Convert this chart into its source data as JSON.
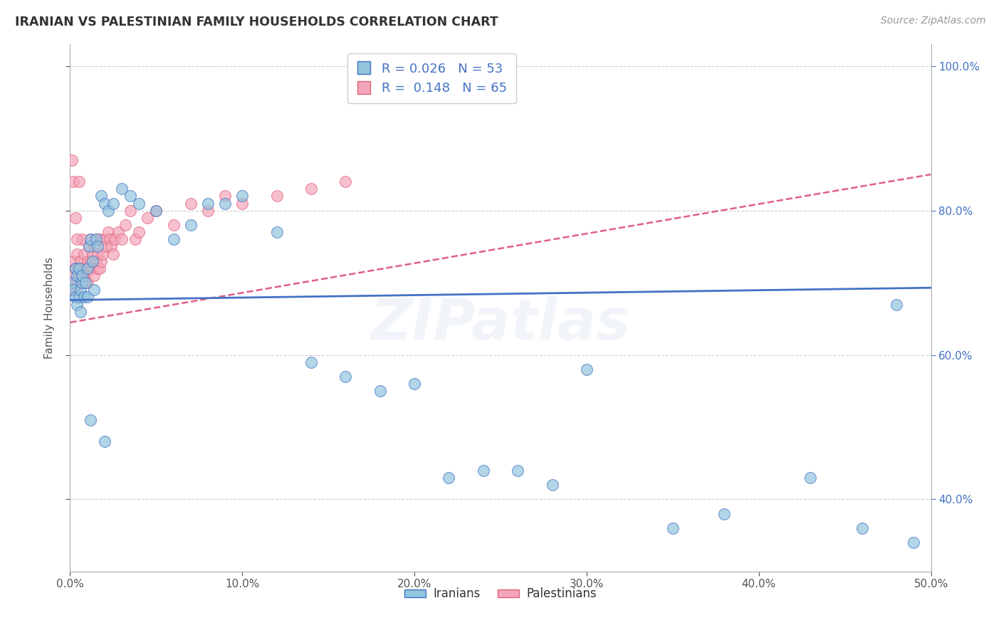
{
  "title": "IRANIAN VS PALESTINIAN FAMILY HOUSEHOLDS CORRELATION CHART",
  "source": "Source: ZipAtlas.com",
  "ylabel": "Family Households",
  "xmin": 0.0,
  "xmax": 0.5,
  "ymin": 0.3,
  "ymax": 1.03,
  "xticks": [
    0.0,
    0.1,
    0.2,
    0.3,
    0.4,
    0.5
  ],
  "xticklabels": [
    "0.0%",
    "10.0%",
    "20.0%",
    "30.0%",
    "40.0%",
    "50.0%"
  ],
  "yticks": [
    0.4,
    0.6,
    0.8,
    1.0
  ],
  "yticklabels": [
    "40.0%",
    "60.0%",
    "80.0%",
    "100.0%"
  ],
  "legend_label1": "Iranians",
  "legend_label2": "Palestinians",
  "R1": 0.026,
  "N1": 53,
  "R2": 0.148,
  "N2": 65,
  "color_iranian": "#92C5DE",
  "color_palestinian": "#F4A6B8",
  "color_line_iranian": "#4472C4",
  "color_line_palestinian": "#E06080",
  "color_text_blue": "#4472C4",
  "iranians_x": [
    0.001,
    0.002,
    0.003,
    0.003,
    0.004,
    0.004,
    0.005,
    0.005,
    0.006,
    0.006,
    0.007,
    0.007,
    0.008,
    0.009,
    0.01,
    0.01,
    0.011,
    0.012,
    0.013,
    0.014,
    0.015,
    0.016,
    0.018,
    0.02,
    0.022,
    0.025,
    0.03,
    0.035,
    0.04,
    0.05,
    0.06,
    0.07,
    0.08,
    0.09,
    0.1,
    0.12,
    0.14,
    0.16,
    0.18,
    0.2,
    0.22,
    0.24,
    0.26,
    0.28,
    0.3,
    0.35,
    0.38,
    0.43,
    0.46,
    0.48,
    0.012,
    0.02,
    0.49
  ],
  "iranians_y": [
    0.7,
    0.69,
    0.68,
    0.72,
    0.71,
    0.67,
    0.68,
    0.72,
    0.69,
    0.66,
    0.7,
    0.71,
    0.68,
    0.7,
    0.72,
    0.68,
    0.75,
    0.76,
    0.73,
    0.69,
    0.76,
    0.75,
    0.82,
    0.81,
    0.8,
    0.81,
    0.83,
    0.82,
    0.81,
    0.8,
    0.76,
    0.78,
    0.81,
    0.81,
    0.82,
    0.77,
    0.59,
    0.57,
    0.55,
    0.56,
    0.43,
    0.44,
    0.44,
    0.42,
    0.58,
    0.36,
    0.38,
    0.43,
    0.36,
    0.67,
    0.51,
    0.48,
    0.34
  ],
  "palestinians_x": [
    0.001,
    0.001,
    0.002,
    0.002,
    0.003,
    0.003,
    0.004,
    0.004,
    0.005,
    0.005,
    0.006,
    0.006,
    0.007,
    0.007,
    0.007,
    0.008,
    0.008,
    0.009,
    0.009,
    0.01,
    0.01,
    0.011,
    0.011,
    0.012,
    0.012,
    0.013,
    0.013,
    0.014,
    0.014,
    0.015,
    0.015,
    0.016,
    0.016,
    0.017,
    0.017,
    0.018,
    0.019,
    0.02,
    0.021,
    0.022,
    0.023,
    0.024,
    0.025,
    0.026,
    0.028,
    0.03,
    0.032,
    0.035,
    0.038,
    0.04,
    0.045,
    0.05,
    0.06,
    0.07,
    0.08,
    0.09,
    0.1,
    0.12,
    0.14,
    0.16,
    0.001,
    0.002,
    0.003,
    0.004,
    0.005
  ],
  "palestinians_y": [
    0.71,
    0.69,
    0.73,
    0.7,
    0.72,
    0.69,
    0.7,
    0.74,
    0.72,
    0.71,
    0.73,
    0.7,
    0.71,
    0.76,
    0.72,
    0.7,
    0.74,
    0.72,
    0.71,
    0.73,
    0.7,
    0.72,
    0.75,
    0.73,
    0.76,
    0.72,
    0.74,
    0.75,
    0.71,
    0.73,
    0.76,
    0.72,
    0.74,
    0.76,
    0.72,
    0.73,
    0.74,
    0.76,
    0.75,
    0.77,
    0.76,
    0.75,
    0.74,
    0.76,
    0.77,
    0.76,
    0.78,
    0.8,
    0.76,
    0.77,
    0.79,
    0.8,
    0.78,
    0.81,
    0.8,
    0.82,
    0.81,
    0.82,
    0.83,
    0.84,
    0.87,
    0.84,
    0.79,
    0.76,
    0.84
  ],
  "iran_trend_x0": 0.0,
  "iran_trend_x1": 0.5,
  "iran_trend_y0": 0.676,
  "iran_trend_y1": 0.693,
  "pal_trend_x0": 0.0,
  "pal_trend_x1": 0.5,
  "pal_trend_y0": 0.645,
  "pal_trend_y1": 0.85
}
